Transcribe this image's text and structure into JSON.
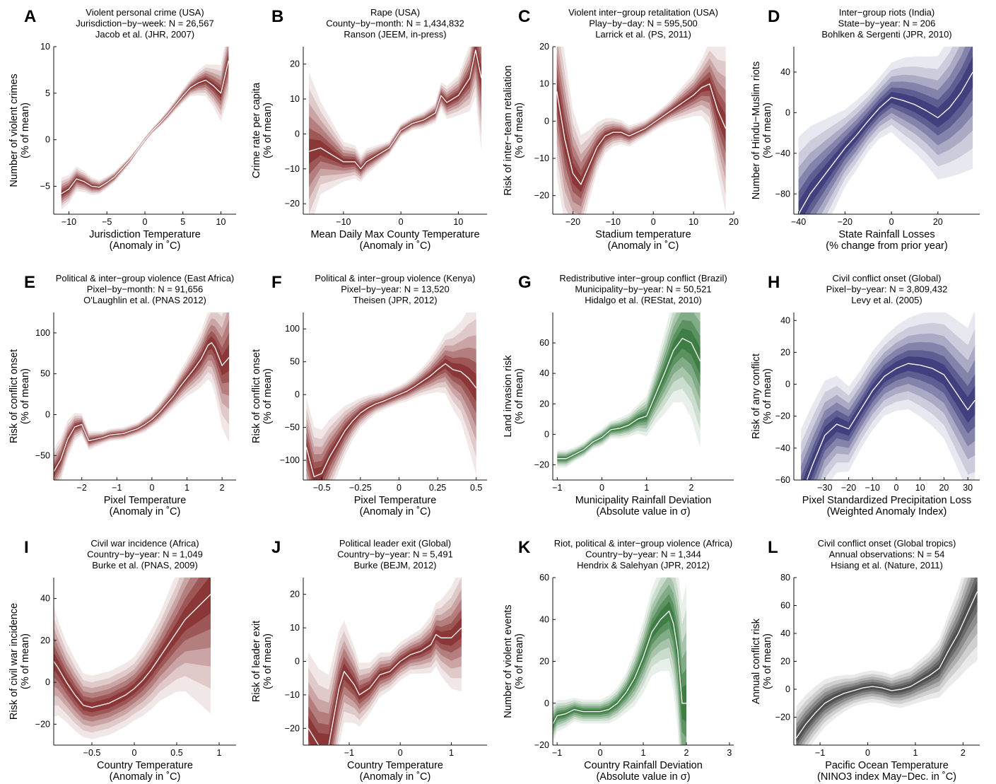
{
  "figure": {
    "panels": [
      {
        "letter": "A",
        "title": [
          "Violent personal crime (USA)",
          "Jurisdiction−by−week: N = 26,567",
          "Jacob et al. (JHR, 2007)"
        ],
        "xlabel": [
          "Jurisdiction Temperature",
          "(Anomaly in ˚C)"
        ],
        "ylabel": [
          "Number of violent crimes",
          "(% of mean)"
        ],
        "xticks": [
          "−10",
          "−5",
          "0",
          "5",
          "10"
        ],
        "yticks": [
          "−5",
          "0",
          "5",
          "10"
        ],
        "color": "#7a1818"
      },
      {
        "letter": "B",
        "title": [
          "Rape (USA)",
          "County−by−month: N = 1,434,832",
          "Ranson (JEEM, in-press)"
        ],
        "xlabel": [
          "Mean Daily Max County Temperature",
          "(Anomaly in ˚C)"
        ],
        "ylabel": [
          "Crime rate per capita",
          "(% of mean)"
        ],
        "xticks": [
          "−10",
          "0",
          "10"
        ],
        "yticks": [
          "−20",
          "−10",
          "0",
          "10",
          "20"
        ],
        "color": "#7a1818"
      },
      {
        "letter": "C",
        "title": [
          "Violent inter−group retalitation (USA)",
          "Play−by−day: N = 595,500",
          "Larrick et al. (PS, 2011)"
        ],
        "xlabel": [
          "Stadium temperature",
          "(Anomaly in ˚C)"
        ],
        "ylabel": [
          "Risk of inter−team retaliation",
          "(% of mean)"
        ],
        "xticks": [
          "−20",
          "−10",
          "0",
          "10",
          "20"
        ],
        "yticks": [
          "−20",
          "−10",
          "0",
          "10",
          "20"
        ],
        "color": "#7a1818"
      },
      {
        "letter": "D",
        "title": [
          "Inter−group riots (India)",
          "State−by−year: N = 206",
          "Bohlken & Sergenti (JPR, 2010)"
        ],
        "xlabel": [
          "State Rainfall Losses",
          "(% change from prior year)"
        ],
        "ylabel": [
          "Number of Hindu−Muslim riots",
          "(% of mean)"
        ],
        "xticks": [
          "−40",
          "−20",
          "0",
          "20"
        ],
        "yticks": [
          "−80",
          "−40",
          "0",
          "40"
        ],
        "color": "#22226a"
      },
      {
        "letter": "E",
        "title": [
          "Political & inter−group violence (East Africa)",
          "Pixel−by−month: N = 91,656",
          "O'Laughlin et al. (PNAS 2012)"
        ],
        "xlabel": [
          "Pixel Temperature",
          "(Anomaly in ˚C)"
        ],
        "ylabel": [
          "Risk of conflict onset",
          "(% of mean)"
        ],
        "xticks": [
          "−2",
          "−1",
          "0",
          "1",
          "2"
        ],
        "yticks": [
          "−50",
          "0",
          "50",
          "100"
        ],
        "color": "#7a1818"
      },
      {
        "letter": "F",
        "title": [
          "Political & inter−group violence (Kenya)",
          "Pixel−by−year: N = 13,520",
          "Theisen (JPR, 2012)"
        ],
        "xlabel": [
          "Pixel Temperature",
          "(Anomaly in ˚C)"
        ],
        "ylabel": [
          "Risk of conflict onset",
          "(% of mean)"
        ],
        "xticks": [
          "−0.5",
          "−0.25",
          "0",
          "0.25",
          "0.5"
        ],
        "yticks": [
          "−100",
          "−50",
          "0",
          "50",
          "100"
        ],
        "color": "#7a1818"
      },
      {
        "letter": "G",
        "title": [
          "Redistributive inter−group conflict (Brazil)",
          "Municipality−by−year: N = 50,521",
          "Hidalgo et al. (REStat, 2010)"
        ],
        "xlabel": [
          "Municipality Rainfall Deviation",
          "(Absolute value in σ)"
        ],
        "ylabel": [
          "Land invasion risk",
          "(% of mean)"
        ],
        "xticks": [
          "−1",
          "0",
          "1",
          "2"
        ],
        "yticks": [
          "−20",
          "0",
          "20",
          "40",
          "60"
        ],
        "color": "#1f6a28"
      },
      {
        "letter": "H",
        "title": [
          "Civil conflict onset (Global)",
          "Pixel−by−year: N =  3,809,432",
          "Levy et al. (2005)"
        ],
        "xlabel": [
          "Pixel Standardized Precipitation Loss",
          "(Weighted Anomaly Index)"
        ],
        "ylabel": [
          "Risk of any conflict",
          "(% of mean)"
        ],
        "xticks": [
          "−30",
          "−20",
          "−10",
          "0",
          "10",
          "20",
          "30"
        ],
        "yticks": [
          "−60",
          "−40",
          "−20",
          "0",
          "20",
          "40"
        ],
        "color": "#22226a"
      },
      {
        "letter": "I",
        "title": [
          "Civil war incidence (Africa)",
          "Country−by−year: N = 1,049",
          "Burke et al. (PNAS, 2009)"
        ],
        "xlabel": [
          "Country Temperature",
          "(Anomaly in ˚C)"
        ],
        "ylabel": [
          "Risk of civil war incidence",
          "(% of mean)"
        ],
        "xticks": [
          "−0.5",
          "0",
          "0.5",
          "1"
        ],
        "yticks": [
          "−20",
          "0",
          "20",
          "40"
        ],
        "color": "#7a1818"
      },
      {
        "letter": "J",
        "title": [
          "Political leader exit (Global)",
          "Country−by−year: N = 5,491",
          "Burke (BEJM, 2012)"
        ],
        "xlabel": [
          "Country Temperature",
          "(Anomaly in ˚C)"
        ],
        "ylabel": [
          "Risk of leader exit",
          "(% of mean)"
        ],
        "xticks": [
          "−1",
          "0",
          "1"
        ],
        "yticks": [
          "−20",
          "−10",
          "0",
          "10",
          "20"
        ],
        "color": "#7a1818"
      },
      {
        "letter": "K",
        "title": [
          "Riot, political & inter−group violence (Africa)",
          "Country−by−year: N = 1,344",
          "Hendrix & Salehyan (JPR, 2012)"
        ],
        "xlabel": [
          "Country Rainfall Deviation",
          "(Absolute value in σ)"
        ],
        "ylabel": [
          "Number of violent events",
          "(% of mean)"
        ],
        "xticks": [
          "−1",
          "0",
          "1",
          "2",
          "3"
        ],
        "yticks": [
          "−20",
          "0",
          "20",
          "40",
          "60"
        ],
        "color": "#1f6a28"
      },
      {
        "letter": "L",
        "title": [
          "Civil conflict onset (Global tropics)",
          "Annual observations: N = 54",
          "Hsiang et al. (Nature, 2011)"
        ],
        "xlabel": [
          "Pacific Ocean Temperature",
          "(NINO3 index May−Dec. in ˚C)"
        ],
        "ylabel": [
          "Annual conflict risk",
          "(% of mean)"
        ],
        "xticks": [
          "−1",
          "0",
          "1",
          "2"
        ],
        "yticks": [
          "−20",
          "0",
          "20",
          "40",
          "60",
          "80"
        ],
        "color": "#333333"
      }
    ]
  },
  "chart_data": [
    {
      "type": "line",
      "panel": "A",
      "xlim": [
        -12,
        12
      ],
      "ylim": [
        -8,
        10
      ],
      "x": [
        -11,
        -10,
        -9,
        -8,
        -7,
        -6,
        -5,
        -4,
        -3,
        -2,
        -1,
        0,
        1,
        2,
        3,
        4,
        5,
        6,
        7,
        8,
        9,
        10,
        11
      ],
      "values": [
        -5.8,
        -5.3,
        -4.2,
        -4.5,
        -5,
        -5.1,
        -4.6,
        -4,
        -3.1,
        -2.2,
        -1.1,
        0,
        1,
        1.8,
        2.7,
        3.7,
        4.7,
        5.6,
        6.1,
        6.4,
        5.8,
        5,
        8.5
      ],
      "band": [
        0.9,
        0.8,
        0.7,
        0.6,
        0.5,
        0.4,
        0.35,
        0.3,
        0.25,
        0.2,
        0.15,
        0.15,
        0.15,
        0.2,
        0.25,
        0.3,
        0.4,
        0.5,
        0.7,
        0.9,
        1.2,
        1.6,
        2
      ]
    },
    {
      "type": "line",
      "panel": "B",
      "xlim": [
        -17,
        15
      ],
      "ylim": [
        -23,
        25
      ],
      "x": [
        -16,
        -14,
        -12,
        -10,
        -8,
        -7,
        -6,
        -4,
        -2,
        0,
        2,
        4,
        6,
        7,
        8,
        10,
        12,
        13,
        14
      ],
      "values": [
        -5,
        -4,
        -6,
        -8,
        -8,
        -10,
        -8,
        -6,
        -4,
        1,
        3,
        4,
        6,
        11,
        9,
        11,
        16,
        24,
        16
      ],
      "band": [
        12,
        7,
        5,
        3,
        2.5,
        2,
        2,
        1.5,
        1,
        1,
        1,
        1.2,
        1.5,
        2,
        2.5,
        3,
        5,
        7,
        11
      ]
    },
    {
      "type": "line",
      "panel": "C",
      "xlim": [
        -25,
        20
      ],
      "ylim": [
        -25,
        20
      ],
      "x": [
        -24,
        -22,
        -20,
        -18,
        -16,
        -14,
        -12,
        -10,
        -8,
        -6,
        -4,
        -2,
        0,
        2,
        4,
        6,
        8,
        10,
        12,
        14,
        16,
        18
      ],
      "values": [
        8,
        -5,
        -14,
        -17,
        -12,
        -7,
        -4,
        -3,
        -3,
        -4,
        -3,
        -2,
        -0.5,
        1,
        2.5,
        4,
        5.5,
        7,
        9,
        10,
        3,
        -2
      ],
      "band": [
        12,
        12,
        9,
        7,
        5,
        3.5,
        2.5,
        2,
        1.7,
        1.5,
        1.3,
        1.2,
        1.2,
        1.3,
        1.5,
        2,
        2.5,
        3,
        4,
        6,
        9,
        12
      ]
    },
    {
      "type": "line",
      "panel": "D",
      "xlim": [
        -42,
        38
      ],
      "ylim": [
        -100,
        65
      ],
      "x": [
        -40,
        -35,
        -30,
        -25,
        -20,
        -15,
        -10,
        -5,
        0,
        5,
        10,
        15,
        20,
        25,
        30,
        35
      ],
      "values": [
        -100,
        -80,
        -65,
        -50,
        -35,
        -22,
        -8,
        5,
        15,
        12,
        8,
        2,
        -5,
        5,
        20,
        40
      ],
      "band": [
        40,
        35,
        30,
        25,
        20,
        18,
        16,
        16,
        18,
        22,
        25,
        28,
        32,
        36,
        42,
        50
      ]
    },
    {
      "type": "line",
      "panel": "E",
      "xlim": [
        -2.8,
        2.4
      ],
      "ylim": [
        -80,
        125
      ],
      "x": [
        -2.8,
        -2.6,
        -2.4,
        -2.2,
        -2,
        -1.8,
        -1.6,
        -1.4,
        -1.2,
        -1,
        -0.8,
        -0.6,
        -0.4,
        -0.2,
        0,
        0.2,
        0.4,
        0.6,
        0.8,
        1,
        1.2,
        1.4,
        1.6,
        1.7,
        1.8,
        2,
        2.2
      ],
      "values": [
        -70,
        -55,
        -30,
        -15,
        -12,
        -32,
        -30,
        -28,
        -25,
        -24,
        -23,
        -20,
        -17,
        -12,
        -6,
        2,
        12,
        22,
        34,
        45,
        56,
        68,
        85,
        88,
        82,
        60,
        70
      ],
      "band": [
        15,
        14,
        12,
        9,
        7,
        6,
        5,
        4,
        4,
        4,
        4,
        4,
        4,
        5,
        5,
        6,
        7,
        8,
        10,
        12,
        15,
        18,
        22,
        26,
        30,
        40,
        55
      ]
    },
    {
      "type": "line",
      "panel": "F",
      "xlim": [
        -0.62,
        0.57
      ],
      "ylim": [
        -130,
        125
      ],
      "x": [
        -0.6,
        -0.55,
        -0.5,
        -0.45,
        -0.4,
        -0.35,
        -0.3,
        -0.25,
        -0.2,
        -0.15,
        -0.1,
        -0.05,
        0,
        0.05,
        0.1,
        0.15,
        0.2,
        0.25,
        0.3,
        0.35,
        0.4,
        0.45,
        0.5
      ],
      "values": [
        -80,
        -125,
        -120,
        -95,
        -75,
        -55,
        -40,
        -28,
        -20,
        -14,
        -10,
        -5,
        0,
        5,
        12,
        20,
        28,
        38,
        47,
        38,
        35,
        25,
        10
      ],
      "band": [
        40,
        40,
        35,
        30,
        25,
        20,
        15,
        12,
        10,
        8,
        7,
        7,
        7,
        8,
        9,
        11,
        14,
        18,
        24,
        32,
        40,
        55,
        70
      ]
    },
    {
      "type": "line",
      "panel": "G",
      "xlim": [
        -1.1,
        2.95
      ],
      "ylim": [
        -30,
        80
      ],
      "x": [
        -1,
        -0.8,
        -0.6,
        -0.4,
        -0.2,
        0,
        0.2,
        0.4,
        0.6,
        0.8,
        1,
        1.2,
        1.4,
        1.6,
        1.8,
        2,
        2.2
      ],
      "values": [
        -16,
        -16,
        -13,
        -10,
        -5,
        -2,
        3,
        4,
        6,
        10,
        12,
        26,
        40,
        55,
        63,
        60,
        48
      ],
      "band": [
        3,
        3,
        2.5,
        2.5,
        2.5,
        3,
        3,
        3.5,
        4,
        5,
        7,
        10,
        14,
        18,
        22,
        26,
        30
      ]
    },
    {
      "type": "line",
      "panel": "H",
      "xlim": [
        -43,
        35
      ],
      "ylim": [
        -60,
        45
      ],
      "x": [
        -40,
        -35,
        -30,
        -25,
        -20,
        -15,
        -10,
        -5,
        0,
        5,
        10,
        15,
        20,
        25,
        30,
        33
      ],
      "values": [
        -70,
        -50,
        -32,
        -25,
        -28,
        -16,
        -4,
        5,
        10,
        13,
        12,
        10,
        6,
        -5,
        -16,
        -10
      ],
      "band": [
        22,
        20,
        18,
        16,
        14,
        13,
        13,
        13,
        14,
        15,
        17,
        19,
        21,
        24,
        27,
        30
      ]
    },
    {
      "type": "line",
      "panel": "I",
      "xlim": [
        -0.95,
        1.2
      ],
      "ylim": [
        -30,
        50
      ],
      "x": [
        -0.95,
        -0.9,
        -0.8,
        -0.7,
        -0.6,
        -0.5,
        -0.4,
        -0.3,
        -0.2,
        -0.1,
        0,
        0.1,
        0.2,
        0.3,
        0.4,
        0.5,
        0.6,
        0.7,
        0.8,
        0.9
      ],
      "values": [
        10,
        7,
        0,
        -6,
        -11,
        -12,
        -11,
        -10,
        -8,
        -6,
        -3,
        1,
        6,
        12,
        18,
        24,
        30,
        34,
        38,
        42
      ],
      "band": [
        14,
        12,
        10,
        9,
        8,
        8,
        8,
        8,
        8,
        8,
        8,
        9,
        10,
        11,
        13,
        15,
        18,
        22,
        26,
        30
      ]
    },
    {
      "type": "line",
      "panel": "J",
      "xlim": [
        -1.9,
        1.7
      ],
      "ylim": [
        -25,
        25
      ],
      "x": [
        -1.8,
        -1.6,
        -1.4,
        -1.2,
        -1.1,
        -1,
        -0.9,
        -0.8,
        -0.6,
        -0.4,
        -0.2,
        0,
        0.2,
        0.4,
        0.6,
        0.7,
        0.8,
        1,
        1.2
      ],
      "values": [
        -20,
        -25,
        -25,
        -8,
        -3,
        -5,
        -7,
        -10,
        -8,
        -4,
        -3,
        0,
        2,
        3,
        5,
        8,
        7,
        7,
        10
      ],
      "band": [
        12,
        12,
        11,
        9,
        8,
        7,
        6,
        5,
        4,
        3.5,
        3,
        3,
        3,
        3.5,
        4.5,
        5,
        6,
        8,
        10
      ]
    },
    {
      "type": "line",
      "panel": "K",
      "xlim": [
        -1.1,
        3.1
      ],
      "ylim": [
        -20,
        60
      ],
      "x": [
        -1.1,
        -1,
        -0.8,
        -0.6,
        -0.4,
        -0.2,
        0,
        0.2,
        0.4,
        0.6,
        0.8,
        1,
        1.2,
        1.4,
        1.6,
        1.7,
        1.8,
        1.9,
        2
      ],
      "values": [
        -10,
        -6,
        -5,
        -3,
        -4,
        -4,
        -4,
        -3,
        0,
        5,
        12,
        22,
        34,
        40,
        44,
        38,
        25,
        0,
        0
      ],
      "band": [
        5,
        4,
        3.5,
        3,
        3,
        3,
        3,
        3.5,
        4,
        5,
        7,
        9,
        11,
        13,
        15,
        17,
        20,
        25,
        30
      ]
    },
    {
      "type": "line",
      "panel": "L",
      "xlim": [
        -1.55,
        2.35
      ],
      "ylim": [
        -40,
        80
      ],
      "x": [
        -1.5,
        -1.3,
        -1.1,
        -0.9,
        -0.7,
        -0.5,
        -0.3,
        -0.1,
        0.1,
        0.3,
        0.5,
        0.7,
        0.9,
        1.1,
        1.3,
        1.5,
        1.7,
        1.9,
        2.1,
        2.3
      ],
      "values": [
        -35,
        -25,
        -17,
        -10,
        -6,
        -3,
        -1,
        1,
        2,
        1,
        -1,
        0,
        2,
        6,
        10,
        15,
        28,
        40,
        55,
        70
      ],
      "band": [
        12,
        11,
        10,
        9,
        8,
        7,
        6,
        6,
        6,
        6,
        6,
        7,
        7,
        8,
        9,
        11,
        14,
        17,
        21,
        26
      ]
    }
  ]
}
